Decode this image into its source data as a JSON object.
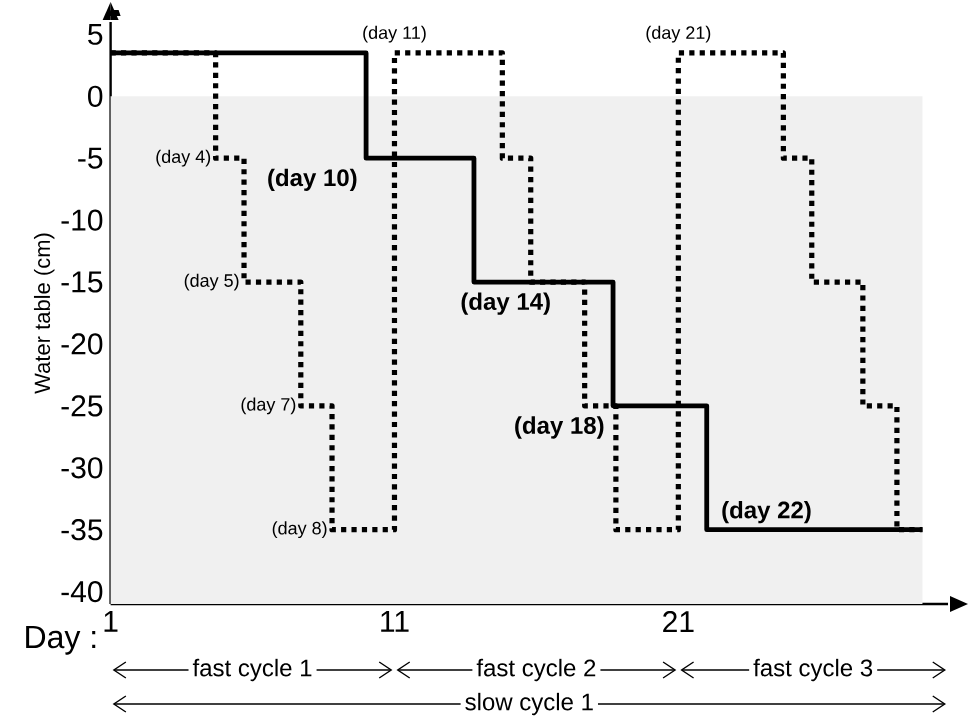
{
  "chart_data": {
    "type": "step",
    "ylabel": "Water table (cm)",
    "xlabel": "Day :",
    "xlim": [
      1,
      30.5
    ],
    "ylim": [
      -41,
      6
    ],
    "xticks": [
      1,
      11,
      21
    ],
    "yticks": [
      -40,
      -35,
      -30,
      -25,
      -20,
      -15,
      -10,
      -5,
      0,
      5
    ],
    "grid": false,
    "marker": "none",
    "series": [
      {
        "color": "#000000",
        "line_style": "solid",
        "x": [
          1,
          10,
          13.8,
          18.7,
          22,
          29.6
        ],
        "values": [
          3.5,
          -5,
          -15,
          -25,
          -35,
          -35
        ]
      },
      {
        "color": "#000000",
        "line_style": "dotted",
        "x": [
          1,
          4.7,
          5.7,
          7.7,
          8.8,
          11,
          14.8,
          15.8,
          17.7,
          18.8,
          21,
          24.7,
          25.7,
          27.5,
          28.7,
          29.6
        ],
        "values": [
          3.5,
          -5,
          -15,
          -25,
          -35,
          3.5,
          -5,
          -15,
          -25,
          -35,
          3.5,
          -5,
          -15,
          -25,
          -35,
          -35
        ]
      }
    ],
    "bands": [
      {
        "axis": "y",
        "from": -41,
        "to": 0,
        "color": "#f0f0f0"
      }
    ],
    "annotations": [
      {
        "text": "(day 4)",
        "x": 4.7,
        "y": -5
      },
      {
        "text": "(day 5)",
        "x": 5.7,
        "y": -15
      },
      {
        "text": "(day 7)",
        "x": 7.7,
        "y": -25
      },
      {
        "text": "(day 8)",
        "x": 8.8,
        "y": -35
      },
      {
        "text": "(day 11)",
        "x": 11,
        "y": 3.5
      },
      {
        "text": "(day 21)",
        "x": 21,
        "y": 3.5
      },
      {
        "text": "(day 10)",
        "x": 10,
        "y": -5
      },
      {
        "text": "(day 14)",
        "x": 13.8,
        "y": -15
      },
      {
        "text": "(day 18)",
        "x": 18.7,
        "y": -25
      },
      {
        "text": "(day 22)",
        "x": 22,
        "y": -35
      },
      "fast cycle 1",
      "fast cycle 2",
      "fast cycle 3",
      "slow cycle 1"
    ]
  }
}
